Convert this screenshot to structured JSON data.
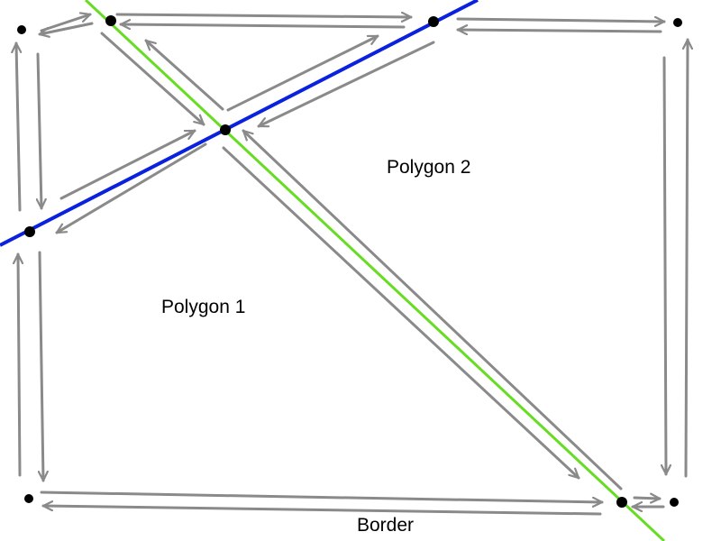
{
  "labels": {
    "polygon_1": "Polygon 1",
    "polygon_2": "Polygon 2",
    "border": "Border"
  },
  "colors": {
    "line_green": "#66dd22",
    "line_blue": "#0a22dd",
    "arrow": "#8a8a8a",
    "vertex": "#000000",
    "background": "#ffffff"
  },
  "diagram": {
    "type": "polygon-edge-traversal",
    "vertex_count": 9,
    "lines": [
      "green",
      "blue"
    ]
  }
}
